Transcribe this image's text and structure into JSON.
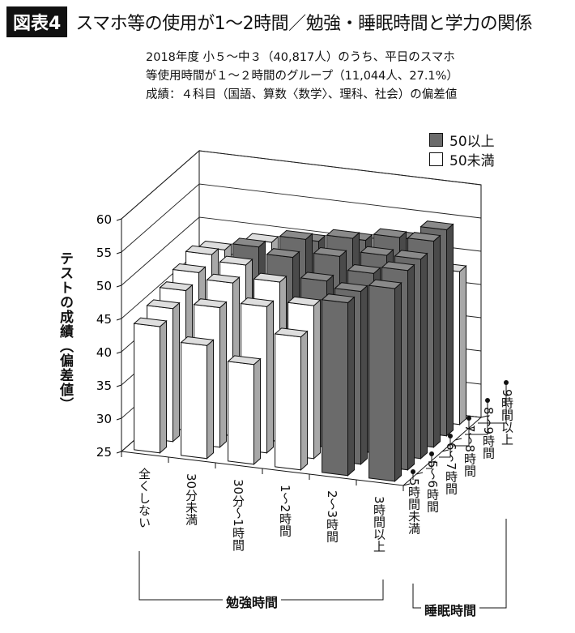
{
  "header": {
    "figure_label": "図表4",
    "title": "スマホ等の使用が1〜2時間／勉強・睡眠時間と学力の関係"
  },
  "subtitle": [
    "2018年度 小５〜中３（40,817人）のうち、平日のスマホ",
    "等使用時間が１〜２時間のグループ（11,044人、27.1%）",
    "成績：４科目（国語、算数〈数学〉、理科、社会）の偏差値"
  ],
  "chart_data": {
    "type": "bar3d",
    "ylabel": "テストの成績（偏差値）",
    "ylim": [
      25,
      60
    ],
    "yticks": [
      25,
      30,
      35,
      40,
      45,
      50,
      55,
      60
    ],
    "x_title": "勉強時間",
    "x_categories": [
      "全くしない",
      "30分未満",
      "30分〜1時間",
      "1〜2時間",
      "2〜3時間",
      "3時間以上"
    ],
    "z_title": "睡眠時間",
    "z_categories": [
      "5時間未満",
      "5〜6時間",
      "6〜7時間",
      "7〜8時間",
      "8〜9時間",
      "9時間以上"
    ],
    "legend": [
      {
        "label": "50以上",
        "color": "#6b6b6b"
      },
      {
        "label": "50未満",
        "color": "#ffffff"
      }
    ],
    "threshold": 50,
    "values": [
      [
        44,
        42,
        40,
        45,
        51,
        54
      ],
      [
        45,
        46,
        47,
        48,
        51,
        55
      ],
      [
        46,
        48,
        49,
        50,
        52,
        55
      ],
      [
        47,
        49,
        51,
        52,
        53,
        56
      ],
      [
        48,
        50,
        52,
        53,
        54,
        56
      ],
      [
        47,
        49,
        50,
        51,
        52,
        48
      ]
    ]
  }
}
